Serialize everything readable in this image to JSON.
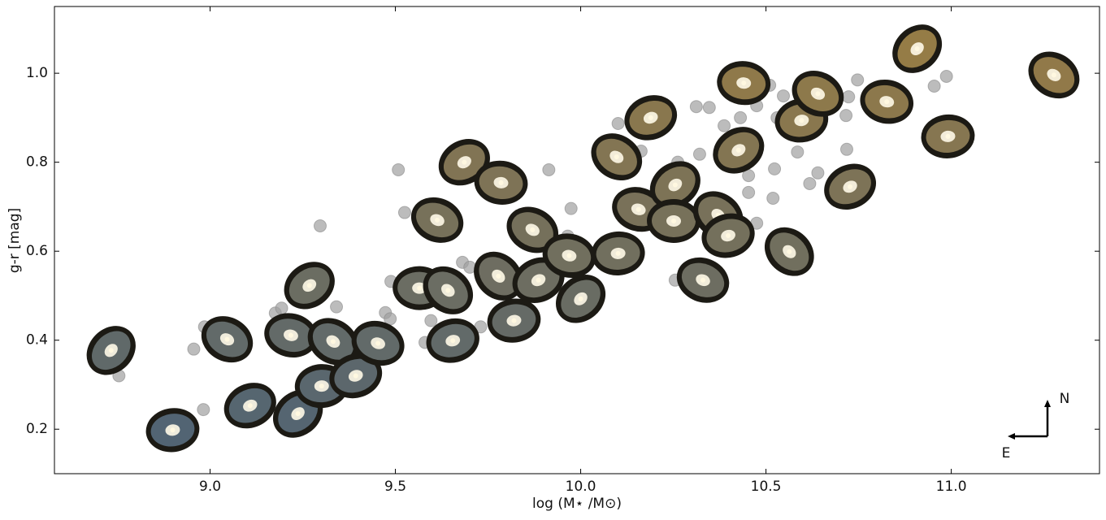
{
  "chart_data": {
    "type": "scatter",
    "xlabel": "log (M⋆ /M⊙)",
    "ylabel": "g-r [mag]",
    "xlim": [
      8.58,
      11.4
    ],
    "ylim": [
      0.1,
      1.15
    ],
    "xticks": [
      {
        "value": 9,
        "label": "9.0"
      },
      9.5,
      {
        "value": 10,
        "label": "10.0"
      },
      10.5,
      {
        "value": 11,
        "label": "11.0"
      }
    ],
    "yticks": [
      0.2,
      0.4,
      0.6,
      0.8,
      {
        "value": 1,
        "label": "1.0"
      }
    ],
    "annotations": [
      "N",
      "E"
    ],
    "series": [
      {
        "color": "#a0a0a0",
        "x": [
          8.754,
          8.956,
          8.982,
          8.985,
          9.297,
          9.176,
          9.193,
          9.341,
          9.473,
          9.486,
          9.508,
          9.525,
          9.488,
          9.58,
          9.596,
          9.681,
          9.701,
          9.73,
          9.914,
          9.974,
          9.965,
          10.101,
          10.163,
          10.262,
          10.255,
          10.312,
          10.347,
          10.321,
          10.387,
          10.431,
          10.475,
          10.51,
          10.453,
          10.453,
          10.475,
          10.519,
          10.523,
          10.53,
          10.547,
          10.585,
          10.618,
          10.64,
          10.668,
          10.716,
          10.718,
          10.723,
          10.747,
          10.954,
          10.987
        ],
        "values": [
          0.32,
          0.38,
          0.244,
          0.43,
          0.657,
          0.461,
          0.472,
          0.475,
          0.462,
          0.448,
          0.783,
          0.687,
          0.532,
          0.395,
          0.444,
          0.575,
          0.564,
          0.43,
          0.783,
          0.696,
          0.634,
          0.887,
          0.825,
          0.8,
          0.535,
          0.925,
          0.923,
          0.818,
          0.882,
          0.9,
          0.927,
          0.973,
          0.732,
          0.77,
          0.663,
          0.719,
          0.785,
          0.9,
          0.949,
          0.823,
          0.752,
          0.776,
          0.978,
          0.905,
          0.829,
          0.947,
          0.985,
          0.971,
          0.993
        ]
      },
      {
        "color": "#c8a050",
        "x": [
          8.733,
          8.899,
          9.046,
          9.108,
          9.218,
          9.237,
          9.301,
          9.332,
          9.393,
          9.453,
          9.268,
          9.565,
          9.642,
          9.655,
          9.613,
          9.686,
          9.785,
          9.778,
          9.82,
          9.87,
          9.886,
          9.969,
          10.0,
          10.101,
          10.097,
          10.189,
          10.156,
          10.255,
          10.251,
          10.371,
          10.398,
          10.33,
          10.426,
          10.44,
          10.563,
          10.596,
          10.64,
          10.727,
          10.826,
          10.908,
          10.991,
          11.277
        ],
        "values": [
          0.377,
          0.198,
          0.402,
          0.253,
          0.411,
          0.235,
          0.297,
          0.397,
          0.32,
          0.393,
          0.523,
          0.517,
          0.512,
          0.399,
          0.67,
          0.8,
          0.754,
          0.544,
          0.444,
          0.648,
          0.535,
          0.59,
          0.493,
          0.595,
          0.812,
          0.9,
          0.694,
          0.749,
          0.668,
          0.681,
          0.635,
          0.535,
          0.827,
          0.978,
          0.599,
          0.894,
          0.954,
          0.745,
          0.936,
          1.055,
          0.858,
          0.996
        ]
      }
    ]
  }
}
